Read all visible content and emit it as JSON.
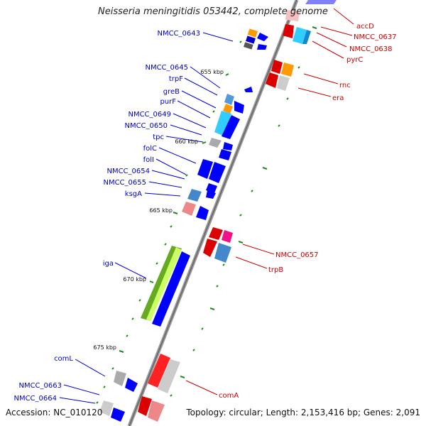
{
  "title": "Neisseria meningitidis 053442, complete genome",
  "footer": {
    "accession": "Accession: NC_010120",
    "summary": "Topology: circular; Length: 2,153,416 bp; Genes: 2,091"
  },
  "colors": {
    "left_label": "#0000cc",
    "right_label": "#cc0000",
    "backbone": "#888888",
    "tick": "#228822"
  },
  "kbp_labels": [
    "655 kbp",
    "660 kbp",
    "665 kbp",
    "670 kbp",
    "675 kbp"
  ],
  "left_genes": [
    "NMCC_0643",
    "NMCC_0645",
    "trpF",
    "greB",
    "purF",
    "NMCC_0649",
    "NMCC_0650",
    "tpc",
    "folC",
    "folI",
    "NMCC_0654",
    "NMCC_0655",
    "ksgA",
    "iga",
    "comL",
    "NMCC_0663",
    "NMCC_0664"
  ],
  "right_genes": [
    "accD",
    "NMCC_0637",
    "NMCC_0638",
    "pyrC",
    "rnc",
    "era",
    "NMCC_0657",
    "trpB",
    "comA"
  ]
}
